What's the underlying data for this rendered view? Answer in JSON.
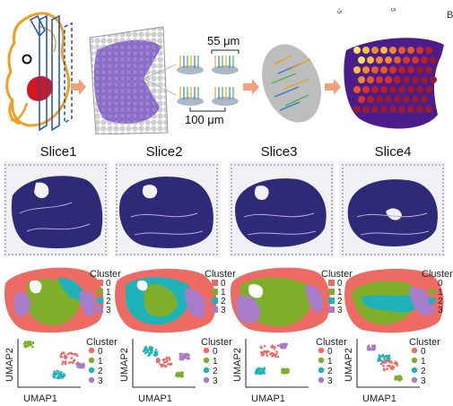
{
  "top_row": {
    "dimension_top": "55 μm",
    "dimension_bottom": "100 μm",
    "edge_marks": [
      "-5",
      "5"
    ],
    "edge_letter": "B"
  },
  "slices": [
    {
      "title": "Slice1"
    },
    {
      "title": "Slice2"
    },
    {
      "title": "Slice3"
    },
    {
      "title": "Slice4"
    }
  ],
  "cluster_legend": {
    "title": "Cluster",
    "labels": [
      "0",
      "1",
      "2",
      "3"
    ]
  },
  "umap": {
    "xlabel": "UMAP1",
    "ylabel": "UMAP2"
  },
  "colors": {
    "cluster_0": "#ee6b63",
    "cluster_1": "#7faf2a",
    "cluster_2": "#1fb3b9",
    "cluster_3": "#a77cc9",
    "embryo_outline": "#f0a020",
    "tissue_purple": "#8b6cc7",
    "arrow": "#f0a07a",
    "tissue_stain": "#2e2a78"
  }
}
